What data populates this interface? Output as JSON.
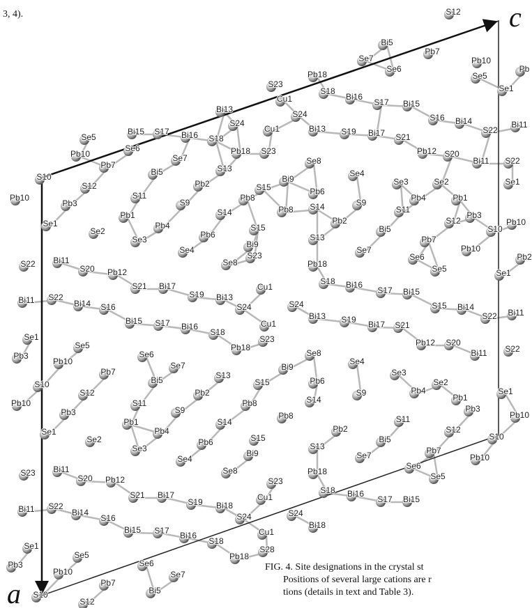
{
  "header": {
    "text": "3, 4)."
  },
  "axes": {
    "c": "c",
    "a": "a"
  },
  "atoms": [
    "Bi5",
    "S12",
    "Se7",
    "Se6",
    "Pb7",
    "Pb10",
    "Pb",
    "Se5",
    "Se1",
    "Pb18",
    "S23",
    "Cu1",
    "S18",
    "Bi16",
    "S17",
    "Bi15",
    "Bi13",
    "S24",
    "S24",
    "S16",
    "Bi14",
    "S22",
    "Bi11",
    "Cu1",
    "Bi13",
    "S19",
    "Bi17",
    "S21",
    "Bi15",
    "S17",
    "Bi16",
    "S18",
    "S23",
    "Pb18",
    "Pb12",
    "S20",
    "Bi11",
    "S22",
    "Se5",
    "Se6",
    "Se7",
    "Se8",
    "Se4",
    "Pb10",
    "Pb7",
    "Bi5",
    "S13",
    "Bi9",
    "Se3",
    "Se2",
    "Se1",
    "S10",
    "S12",
    "Pb2",
    "S15",
    "Pb6",
    "Pb4",
    "Pb1",
    "Pb10",
    "Pb3",
    "S11",
    "Pb8",
    "S14",
    "S9",
    "S9",
    "Pb3",
    "Pb10",
    "Pb1",
    "Pb8",
    "S11",
    "Se1",
    "Pb4",
    "S14",
    "Pb2",
    "S12",
    "S10",
    "Se2",
    "Se3",
    "Pb6",
    "S15",
    "Bi5",
    "Pb7",
    "Pb10",
    "Se4",
    "Bi9",
    "S13",
    "Se7",
    "Se6",
    "S22",
    "Bi11",
    "S20",
    "Pb12",
    "Se8",
    "S23",
    "Pb18",
    "Se5",
    "Pb2",
    "Se1",
    "Bi11",
    "S22",
    "Bi14",
    "S16",
    "S21",
    "Bi17",
    "S19",
    "Bi13",
    "Cu1",
    "S24",
    "S24",
    "S18",
    "Bi16",
    "S17",
    "Bi15",
    "S15",
    "Bi14",
    "S22",
    "Bi11",
    "Bi15",
    "S17",
    "Bi16",
    "S18",
    "Cu1",
    "Bi13",
    "S19",
    "Bi17",
    "S21",
    "Se1",
    "Se5",
    "Se6",
    "Pb18",
    "S23",
    "Pb12",
    "S20",
    "Bi11",
    "S22",
    "Pb3",
    "Pb10",
    "Pb7",
    "Se7",
    "Bi9",
    "Se8",
    "Se4",
    "Se3",
    "S10",
    "S12",
    "Bi5",
    "S13",
    "S15",
    "Pb6",
    "Pb4",
    "Se2",
    "Se1",
    "Pb10",
    "S11",
    "Pb2",
    "Pb8",
    "S14",
    "S9",
    "Pb1",
    "Pb3",
    "Pb1",
    "S9",
    "S14",
    "Pb8",
    "Pb3",
    "Pb10",
    "Se1",
    "S11",
    "S12",
    "Pb4",
    "Pb2",
    "Bi5",
    "S10",
    "Se2",
    "Se3",
    "Pb6",
    "S15",
    "S13",
    "Pb7",
    "Pb10",
    "Se4",
    "Bi9",
    "Se7",
    "Se6",
    "Se5",
    "S23",
    "Bi11",
    "S20",
    "Pb12",
    "Se8",
    "S23",
    "Pb18",
    "S18",
    "Bi16",
    "S17",
    "Bi15",
    "S21",
    "Bi17",
    "S19",
    "Bi18",
    "Cu1",
    "Bi11",
    "S22",
    "Bi14",
    "S16",
    "S24",
    "S24",
    "Bi15",
    "S17",
    "Bi16",
    "S18",
    "Cu1",
    "Bi18",
    "Se1",
    "Se5",
    "Se6",
    "Pb18",
    "S28",
    "Pb3",
    "Pb10",
    "Pb7",
    "Se7",
    "Bi5",
    "S10",
    "S12"
  ],
  "caption": {
    "lines": [
      "FIG. 4.   Site designations in the crystal st",
      "Positions of several large cations are r",
      "tions (details in text and Table 3)."
    ]
  }
}
